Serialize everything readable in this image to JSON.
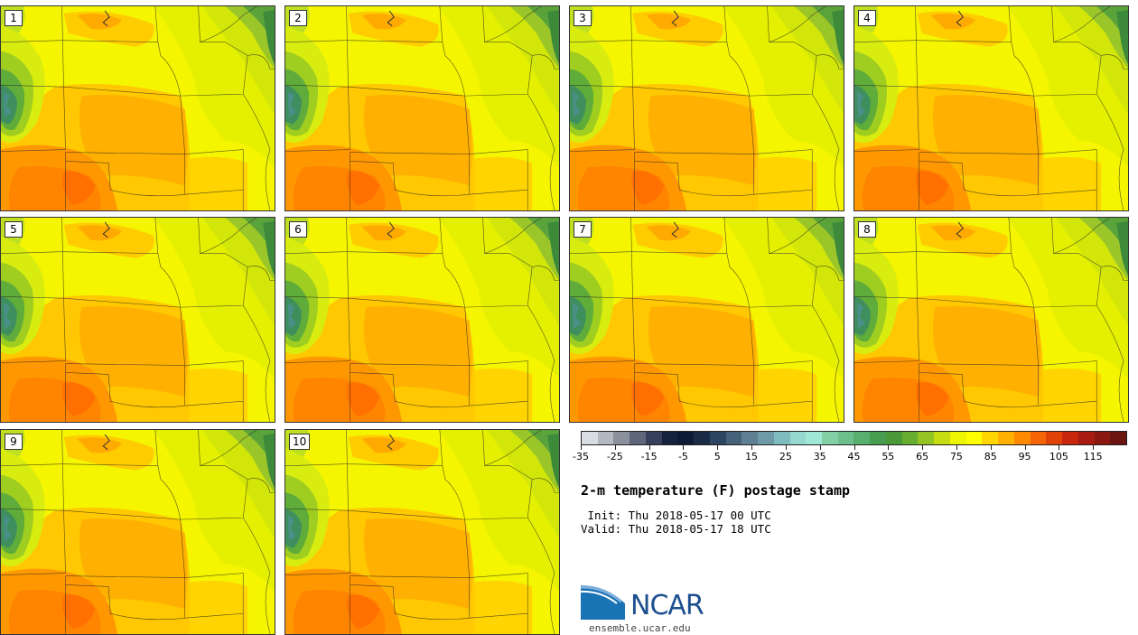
{
  "figure": {
    "title": "2-m temperature (F) postage stamp",
    "init_label": " Init: Thu 2018-05-17 00 UTC",
    "valid_label": "Valid: Thu 2018-05-17 18 UTC",
    "logo_text": "NCAR",
    "url": "ensemble.ucar.edu"
  },
  "members": [
    "1",
    "2",
    "3",
    "4",
    "5",
    "6",
    "7",
    "8",
    "9",
    "10"
  ],
  "colorbar": {
    "colors": [
      "#d9dde3",
      "#b4b9c1",
      "#8a909c",
      "#5f6679",
      "#36405a",
      "#15213d",
      "#0d1a33",
      "#1a2b46",
      "#2d4560",
      "#46627a",
      "#5f7f93",
      "#6e9aa8",
      "#7fbcc0",
      "#95d8cf",
      "#9fe8d6",
      "#84d0a6",
      "#6cbf8a",
      "#58b06e",
      "#479d50",
      "#4a9a3a",
      "#66ad30",
      "#94c524",
      "#c7dc12",
      "#eef500",
      "#ffff00",
      "#ffd600",
      "#ffb000",
      "#ff8a00",
      "#f56508",
      "#e04208",
      "#c9260e",
      "#a81b12",
      "#8a1710",
      "#6a1510"
    ],
    "ticks": [
      "-35",
      "-25",
      "-15",
      "-5",
      "5",
      "15",
      "25",
      "35",
      "45",
      "55",
      "65",
      "75",
      "85",
      "95",
      "105",
      "115"
    ],
    "range": [
      -35,
      125
    ]
  }
}
